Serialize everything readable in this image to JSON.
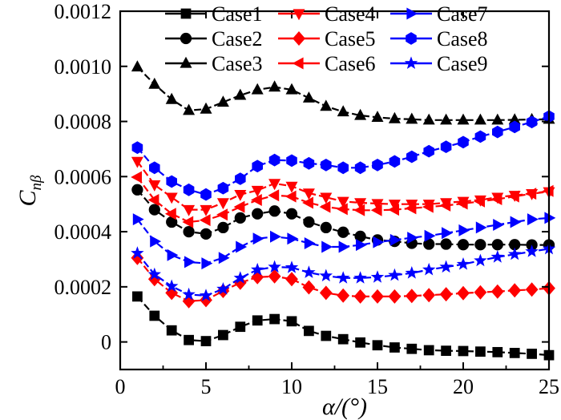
{
  "chart_data": {
    "type": "line",
    "title": "",
    "xlabel": "α/(°)",
    "ylabel": "C_nβ",
    "ylabel_main": "C",
    "ylabel_sub": "nβ",
    "xlim": [
      0,
      25
    ],
    "ylim": [
      -0.0001,
      0.0012
    ],
    "xticks": [
      0,
      5,
      10,
      15,
      20,
      25
    ],
    "xtick_labels": [
      "0",
      "5",
      "10",
      "15",
      "20",
      "25"
    ],
    "yticks": [
      0,
      0.0002,
      0.0004,
      0.0006,
      0.0008,
      0.001,
      0.0012
    ],
    "ytick_labels": [
      "0",
      "0.0002",
      "0.0004",
      "0.0006",
      "0.0008",
      "0.0010",
      "0.0012"
    ],
    "grid": false,
    "legend_position": "top-right",
    "x": [
      1,
      2,
      3,
      4,
      5,
      6,
      7,
      8,
      9,
      10,
      11,
      12,
      13,
      14,
      15,
      16,
      17,
      18,
      19,
      20,
      21,
      22,
      23,
      24,
      25
    ],
    "series": [
      {
        "name": "Case1",
        "color": "#000000",
        "marker": "square",
        "values": [
          0.000165,
          9.5e-05,
          4.2e-05,
          7e-06,
          3e-06,
          2.5e-05,
          5.5e-05,
          7.8e-05,
          8.3e-05,
          7.5e-05,
          4e-05,
          2.2e-05,
          1e-05,
          -2e-06,
          -1.2e-05,
          -2e-05,
          -2.5e-05,
          -3e-05,
          -3.2e-05,
          -3.3e-05,
          -3.5e-05,
          -3.7e-05,
          -4e-05,
          -4.3e-05,
          -4.8e-05
        ]
      },
      {
        "name": "Case2",
        "color": "#000000",
        "marker": "circle",
        "values": [
          0.000552,
          0.00048,
          0.000435,
          0.0004,
          0.000392,
          0.000415,
          0.00045,
          0.000465,
          0.000475,
          0.000465,
          0.000435,
          0.000415,
          0.000398,
          0.000383,
          0.00037,
          0.000365,
          0.000358,
          0.000355,
          0.000355,
          0.000353,
          0.000353,
          0.000353,
          0.000353,
          0.000352,
          0.000352
        ]
      },
      {
        "name": "Case3",
        "color": "#000000",
        "marker": "triangle-up",
        "values": [
          0.000998,
          0.000935,
          0.00088,
          0.00084,
          0.000845,
          0.00087,
          0.000895,
          0.000915,
          0.000925,
          0.000915,
          0.000885,
          0.000855,
          0.000835,
          0.000822,
          0.000815,
          0.00081,
          0.000808,
          0.000805,
          0.000805,
          0.000805,
          0.000805,
          0.000805,
          0.000806,
          0.000807,
          0.000808
        ]
      },
      {
        "name": "Case4",
        "color": "#ff0000",
        "marker": "triangle-down",
        "values": [
          0.000655,
          0.00057,
          0.000525,
          0.00048,
          0.00048,
          0.000505,
          0.000535,
          0.00055,
          0.000575,
          0.000565,
          0.00054,
          0.000525,
          0.00051,
          0.000505,
          0.000502,
          0.0005,
          0.0005,
          0.0005,
          0.000505,
          0.00051,
          0.000515,
          0.000525,
          0.000532,
          0.000538,
          0.000545
        ]
      },
      {
        "name": "Case5",
        "color": "#ff0000",
        "marker": "diamond",
        "values": [
          0.000305,
          0.000228,
          0.000178,
          0.000148,
          0.000152,
          0.000185,
          0.000215,
          0.000235,
          0.000238,
          0.000228,
          0.000198,
          0.000178,
          0.000168,
          0.000165,
          0.000165,
          0.000165,
          0.000167,
          0.00017,
          0.000173,
          0.000177,
          0.00018,
          0.000183,
          0.000187,
          0.00019,
          0.000195
        ]
      },
      {
        "name": "Case6",
        "color": "#ff0000",
        "marker": "triangle-left",
        "values": [
          0.000598,
          0.000515,
          0.000465,
          0.000435,
          0.000442,
          0.000462,
          0.00049,
          0.000515,
          0.000532,
          0.000528,
          0.000505,
          0.00049,
          0.000482,
          0.000478,
          0.000478,
          0.00048,
          0.000485,
          0.00049,
          0.000495,
          0.000502,
          0.00051,
          0.000518,
          0.000528,
          0.000538,
          0.000548
        ]
      },
      {
        "name": "Case7",
        "color": "#0000ff",
        "marker": "triangle-right",
        "values": [
          0.000445,
          0.000365,
          0.000315,
          0.00029,
          0.000285,
          0.000305,
          0.000345,
          0.000375,
          0.000382,
          0.000375,
          0.000358,
          0.000345,
          0.000345,
          0.000352,
          0.000362,
          0.00037,
          0.000378,
          0.000385,
          0.000395,
          0.000405,
          0.000415,
          0.000425,
          0.000435,
          0.000445,
          0.00045
        ]
      },
      {
        "name": "Case8",
        "color": "#0000ff",
        "marker": "hexagon",
        "values": [
          0.000705,
          0.000632,
          0.000582,
          0.000552,
          0.000535,
          0.000558,
          0.000592,
          0.000638,
          0.00066,
          0.000658,
          0.000648,
          0.000642,
          0.000632,
          0.000632,
          0.000642,
          0.000655,
          0.000672,
          0.000692,
          0.000708,
          0.000725,
          0.000745,
          0.000762,
          0.00078,
          0.000798,
          0.000818
        ]
      },
      {
        "name": "Case9",
        "color": "#0000ff",
        "marker": "star",
        "values": [
          0.000322,
          0.000245,
          0.000202,
          0.000172,
          0.000168,
          0.000192,
          0.000232,
          0.000262,
          0.000272,
          0.00027,
          0.000252,
          0.00024,
          0.000232,
          0.000232,
          0.000235,
          0.000242,
          0.00025,
          0.000262,
          0.000272,
          0.000282,
          0.000295,
          0.000308,
          0.000318,
          0.000328,
          0.000338
        ]
      }
    ]
  }
}
